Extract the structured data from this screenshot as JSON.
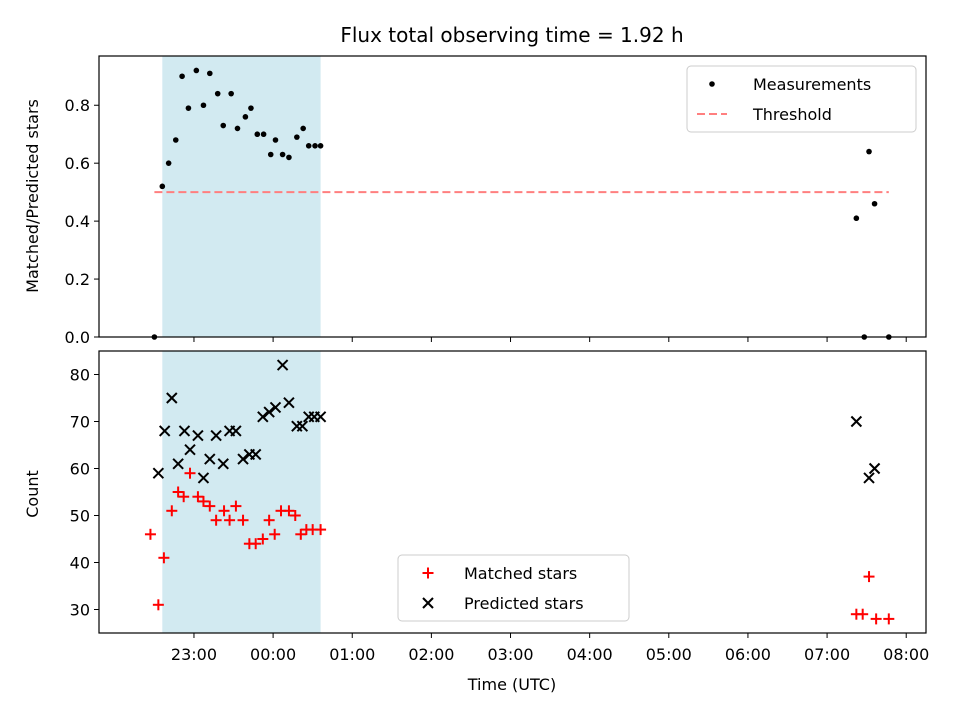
{
  "chart_data": {
    "title": "Flux total observing time = 1.92 h",
    "xlabel": "Time (UTC)",
    "x_ticks": [
      "23:00",
      "00:00",
      "01:00",
      "02:00",
      "03:00",
      "04:00",
      "05:00",
      "06:00",
      "07:00",
      "08:00"
    ],
    "x_tick_hours": [
      23,
      24,
      25,
      26,
      27,
      28,
      29,
      30,
      31,
      32
    ],
    "xlim_hours": [
      21.8,
      32.25
    ],
    "shaded_span_hours": [
      22.6,
      24.6
    ],
    "shaded_color": "#add8e6",
    "panels": [
      {
        "type": "scatter",
        "ylabel": "Matched/Predicted stars",
        "ylim": [
          0,
          0.97
        ],
        "y_ticks": [
          0.0,
          0.2,
          0.4,
          0.6,
          0.8
        ],
        "legend": {
          "placement": "upper-right"
        },
        "series": [
          {
            "name": "Measurements",
            "marker": "dot",
            "color": "#000000",
            "x": [
              22.5,
              22.6,
              22.68,
              22.77,
              22.85,
              22.93,
              23.03,
              23.12,
              23.2,
              23.3,
              23.37,
              23.47,
              23.55,
              23.65,
              23.72,
              23.8,
              23.88,
              23.97,
              24.03,
              24.12,
              24.2,
              24.3,
              24.38,
              24.45,
              24.53,
              24.6,
              31.37,
              31.47,
              31.53,
              31.6,
              31.78
            ],
            "y": [
              0.0,
              0.52,
              0.6,
              0.68,
              0.9,
              0.79,
              0.92,
              0.8,
              0.91,
              0.84,
              0.73,
              0.84,
              0.72,
              0.76,
              0.79,
              0.7,
              0.7,
              0.63,
              0.68,
              0.63,
              0.62,
              0.69,
              0.72,
              0.66,
              0.66,
              0.66,
              0.41,
              0.0,
              0.64,
              0.46,
              0.0
            ]
          },
          {
            "name": "Threshold",
            "type": "line",
            "style": "dashed",
            "color": "#ff7f7f",
            "x": [
              22.5,
              31.78
            ],
            "y": [
              0.5,
              0.5
            ]
          }
        ]
      },
      {
        "type": "scatter",
        "ylabel": "Count",
        "ylim": [
          25,
          85
        ],
        "y_ticks": [
          30,
          40,
          50,
          60,
          70,
          80
        ],
        "legend": {
          "placement": "lower-center"
        },
        "series": [
          {
            "name": "Matched stars",
            "marker": "plus",
            "color": "#ff0000",
            "x": [
              22.45,
              22.55,
              22.62,
              22.72,
              22.8,
              22.87,
              22.95,
              23.05,
              23.12,
              23.2,
              23.28,
              23.38,
              23.45,
              23.53,
              23.62,
              23.7,
              23.78,
              23.87,
              23.95,
              24.02,
              24.1,
              24.2,
              24.28,
              24.35,
              24.42,
              24.5,
              24.6,
              31.37,
              31.45,
              31.53,
              31.62,
              31.78
            ],
            "y": [
              46,
              31,
              41,
              51,
              55,
              54,
              59,
              54,
              53,
              52,
              49,
              51,
              49,
              52,
              49,
              44,
              44,
              45,
              49,
              46,
              51,
              51,
              50,
              46,
              47,
              47,
              47,
              29,
              29,
              37,
              28,
              28
            ]
          },
          {
            "name": "Predicted stars",
            "marker": "x",
            "color": "#000000",
            "x": [
              22.55,
              22.63,
              22.72,
              22.8,
              22.88,
              22.95,
              23.05,
              23.12,
              23.2,
              23.28,
              23.37,
              23.45,
              23.53,
              23.62,
              23.7,
              23.78,
              23.87,
              23.95,
              24.03,
              24.12,
              24.2,
              24.3,
              24.37,
              24.45,
              24.52,
              24.6,
              31.37,
              31.53,
              31.6
            ],
            "y": [
              59,
              68,
              75,
              61,
              68,
              64,
              67,
              58,
              62,
              67,
              61,
              68,
              68,
              62,
              63,
              63,
              71,
              72,
              73,
              82,
              74,
              69,
              69,
              71,
              71,
              71,
              70,
              58,
              60
            ]
          }
        ]
      }
    ]
  }
}
